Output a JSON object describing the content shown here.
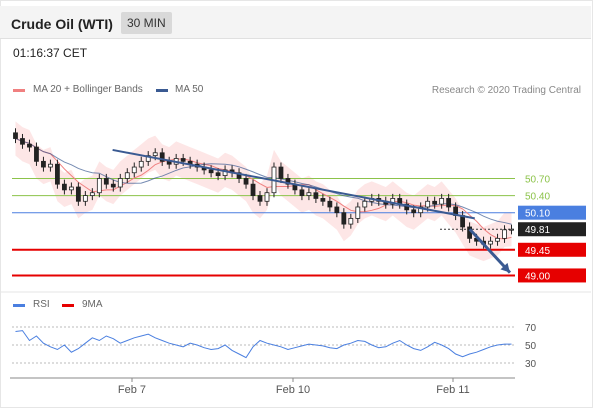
{
  "header": {
    "title": "Crude Oil (WTI)",
    "timeframe": "30 MIN"
  },
  "timestamp": "01:16:37 CET",
  "legend": {
    "ma": "MA 20 + Bollinger Bands",
    "ma50": "MA 50",
    "copyright": "Research © 2020 Trading Central"
  },
  "rsi_legend": {
    "rsi": "RSI",
    "ma9": "9MA"
  },
  "colors": {
    "ma20": "#f08080",
    "ma50": "#3a5a92",
    "band": "#fde2e2",
    "green": "#8cc34a",
    "blue": "#4a7fe0",
    "red": "#e60000",
    "trend": "#3a5a92",
    "rsi": "#4a7fe0"
  },
  "chart_data": [
    {
      "type": "candlestick",
      "x_labels": [
        "Feb 7",
        "Feb 10",
        "Feb 11"
      ],
      "ylim": [
        48.78,
        51.9
      ],
      "levels": [
        {
          "value": 50.7,
          "label": "50.70",
          "kind": "resistance"
        },
        {
          "value": 50.4,
          "label": "50.40",
          "kind": "resistance"
        },
        {
          "value": 50.1,
          "label": "50.10",
          "kind": "pivot"
        },
        {
          "value": 49.81,
          "label": "49.81",
          "kind": "last"
        },
        {
          "value": 49.45,
          "label": "49.45",
          "kind": "support"
        },
        {
          "value": 49.0,
          "label": "49.00",
          "kind": "support"
        }
      ],
      "trendline": {
        "from": [
          0.2,
          51.2
        ],
        "to": [
          0.92,
          50.0
        ]
      },
      "target_arrow": {
        "from": [
          0.91,
          49.81
        ],
        "to": [
          0.99,
          49.05
        ]
      },
      "closes": [
        51.4,
        51.3,
        51.25,
        51.0,
        50.9,
        50.95,
        50.6,
        50.5,
        50.55,
        50.3,
        50.4,
        50.45,
        50.7,
        50.6,
        50.55,
        50.7,
        50.8,
        50.9,
        51.0,
        51.1,
        51.15,
        51.0,
        50.95,
        51.05,
        51.0,
        50.95,
        50.9,
        50.85,
        50.8,
        50.75,
        50.85,
        50.8,
        50.7,
        50.6,
        50.4,
        50.3,
        50.45,
        50.9,
        50.7,
        50.6,
        50.5,
        50.4,
        50.45,
        50.35,
        50.3,
        50.2,
        50.1,
        49.9,
        50.0,
        50.2,
        50.3,
        50.35,
        50.3,
        50.25,
        50.35,
        50.25,
        50.15,
        50.1,
        50.2,
        50.3,
        50.25,
        50.35,
        50.2,
        50.05,
        49.85,
        49.65,
        49.6,
        49.55,
        49.6,
        49.65,
        49.8,
        49.81
      ],
      "bands": {
        "upper_offset": 0.3,
        "lower_offset": 0.3
      }
    },
    {
      "type": "line",
      "name": "RSI",
      "ylim": [
        20,
        80
      ],
      "tick_labels": [
        "70",
        "50",
        "30"
      ],
      "ticks": [
        70,
        50,
        30
      ],
      "values": [
        65,
        66,
        55,
        60,
        52,
        48,
        45,
        50,
        42,
        46,
        52,
        58,
        55,
        60,
        57,
        52,
        55,
        58,
        60,
        62,
        58,
        55,
        52,
        50,
        48,
        52,
        50,
        47,
        45,
        46,
        50,
        44,
        40,
        36,
        48,
        55,
        52,
        50,
        48,
        45,
        47,
        49,
        51,
        50,
        49,
        47,
        46,
        50,
        52,
        55,
        54,
        50,
        47,
        48,
        52,
        55,
        50,
        46,
        44,
        48,
        53,
        50,
        46,
        40,
        37,
        40,
        42,
        45,
        48,
        50,
        51,
        51
      ]
    }
  ]
}
